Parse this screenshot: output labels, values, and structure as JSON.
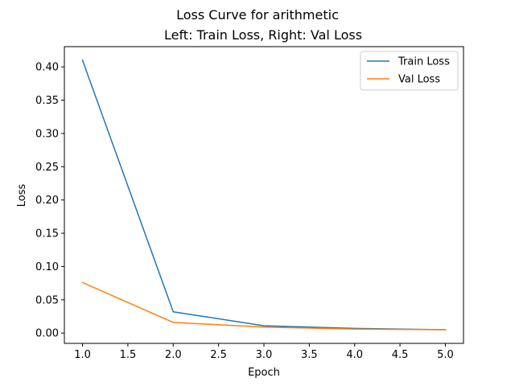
{
  "chart_data": {
    "type": "line",
    "title": "Loss Curve for arithmetic",
    "subtitle": "Left: Train Loss, Right: Val Loss",
    "xlabel": "Epoch",
    "ylabel": "Loss",
    "xlim": [
      0.8,
      5.2
    ],
    "ylim": [
      -0.0155,
      0.4305
    ],
    "xticks": [
      "1.0",
      "1.5",
      "2.0",
      "2.5",
      "3.0",
      "3.5",
      "4.0",
      "4.5",
      "5.0"
    ],
    "yticks": [
      "0.00",
      "0.05",
      "0.10",
      "0.15",
      "0.20",
      "0.25",
      "0.30",
      "0.35",
      "0.40"
    ],
    "x": [
      1,
      2,
      3,
      4,
      5
    ],
    "series": [
      {
        "name": "Train Loss",
        "color": "#1f77b4",
        "values": [
          0.41,
          0.032,
          0.011,
          0.007,
          0.005
        ]
      },
      {
        "name": "Val Loss",
        "color": "#ff7f0e",
        "values": [
          0.076,
          0.016,
          0.009,
          0.006,
          0.005
        ]
      }
    ],
    "grid": false,
    "legend_position": "top-right"
  }
}
